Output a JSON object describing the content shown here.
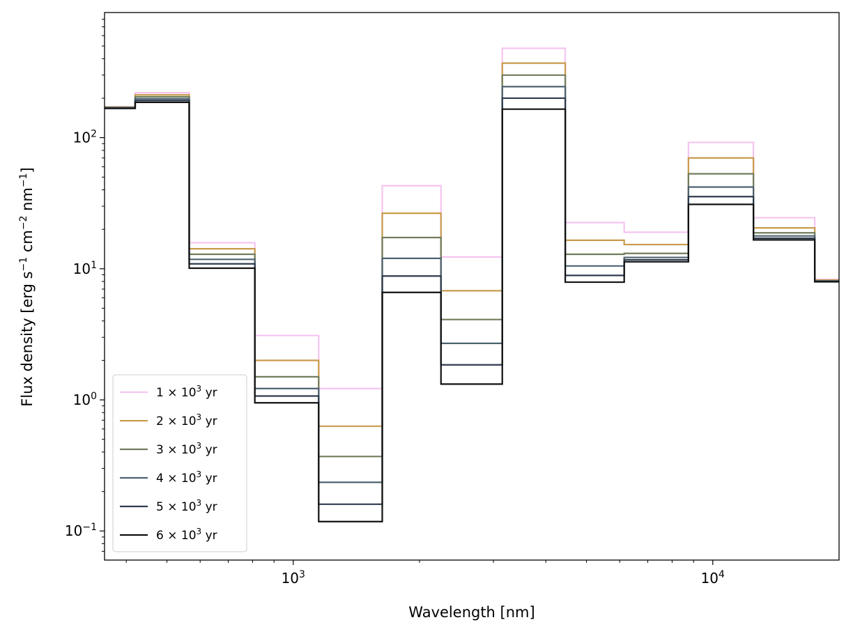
{
  "chart_data": {
    "type": "line",
    "step": true,
    "xlabel": "Wavelength [nm]",
    "ylabel": "Flux density [erg s$^{-1}$ cm$^{-2}$ nm$^{-1}$]",
    "ylabel_parts": [
      {
        "t": "Flux density [erg s"
      },
      {
        "t": "−1",
        "sup": true
      },
      {
        "t": " cm"
      },
      {
        "t": "−2",
        "sup": true
      },
      {
        "t": " nm"
      },
      {
        "t": "−1",
        "sup": true
      },
      {
        "t": "]"
      }
    ],
    "xscale": "log",
    "yscale": "log",
    "xlim": [
      355,
      20000
    ],
    "ylim": [
      0.06,
      900
    ],
    "x_ticks": [
      {
        "value": 1000,
        "base": "10",
        "exp": "3"
      },
      {
        "value": 10000,
        "base": "10",
        "exp": "4"
      }
    ],
    "y_ticks": [
      {
        "value": 0.1,
        "base": "10",
        "exp": "−1"
      },
      {
        "value": 1,
        "base": "10",
        "exp": "0"
      },
      {
        "value": 10,
        "base": "10",
        "exp": "1"
      },
      {
        "value": 100,
        "base": "10",
        "exp": "2"
      }
    ],
    "grid": false,
    "legend_position": "lower-left",
    "bin_edges": [
      355,
      420,
      565,
      810,
      1150,
      1630,
      2250,
      3150,
      4450,
      6150,
      8750,
      12500,
      17500,
      20000
    ],
    "series": [
      {
        "name": "1 × 10³ yr",
        "coef": "1",
        "exp": "3",
        "unit": "yr",
        "color": "#f5c4f0",
        "values": [
          172,
          220,
          15.8,
          3.1,
          1.22,
          43,
          12.3,
          480,
          22.5,
          19,
          92,
          24.5,
          8.3
        ]
      },
      {
        "name": "2 × 10³ yr",
        "coef": "2",
        "exp": "3",
        "unit": "yr",
        "color": "#c99a4b",
        "values": [
          171,
          212,
          14.2,
          2.0,
          0.63,
          26.5,
          6.8,
          370,
          16.5,
          15.3,
          70,
          20.5,
          8.2
        ]
      },
      {
        "name": "3 × 10³ yr",
        "coef": "3",
        "exp": "3",
        "unit": "yr",
        "color": "#707c5c",
        "values": [
          170,
          205,
          12.9,
          1.5,
          0.37,
          17.3,
          4.1,
          300,
          12.9,
          13.1,
          53,
          18.8,
          8.1
        ]
      },
      {
        "name": "4 × 10³ yr",
        "coef": "4",
        "exp": "3",
        "unit": "yr",
        "color": "#4d6270",
        "values": [
          169,
          198,
          11.8,
          1.22,
          0.235,
          12.0,
          2.7,
          245,
          10.5,
          12.2,
          42,
          17.8,
          8.05
        ]
      },
      {
        "name": "5 × 10³ yr",
        "coef": "5",
        "exp": "3",
        "unit": "yr",
        "color": "#2e3b4f",
        "values": [
          168,
          192,
          10.9,
          1.07,
          0.16,
          8.8,
          1.85,
          200,
          8.9,
          11.7,
          35.5,
          17.1,
          8.0
        ]
      },
      {
        "name": "6 × 10³ yr",
        "coef": "6",
        "exp": "3",
        "unit": "yr",
        "color": "#111111",
        "values": [
          167,
          186,
          10.1,
          0.95,
          0.118,
          6.6,
          1.32,
          165,
          7.9,
          11.3,
          31,
          16.6,
          7.95
        ]
      }
    ]
  }
}
